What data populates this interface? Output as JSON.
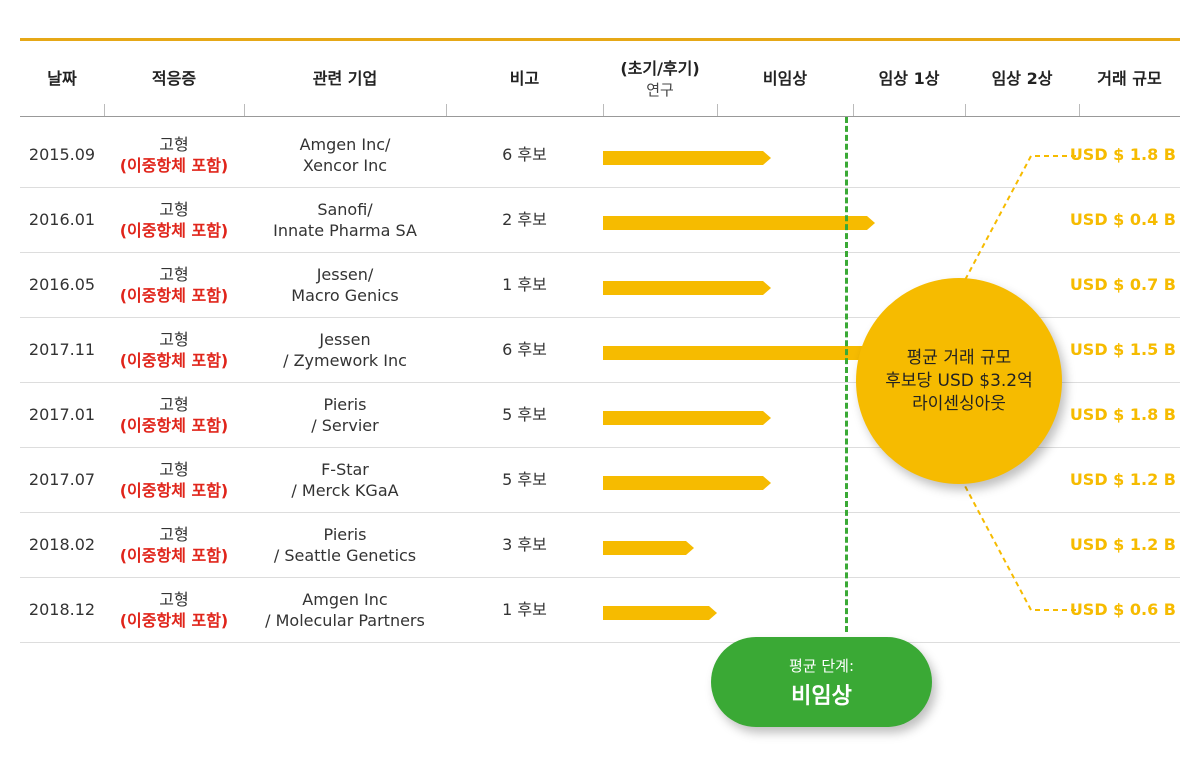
{
  "columns": {
    "date": "날짜",
    "indication": "적응증",
    "company": "관련 기업",
    "note": "비고",
    "research_line1": "(초기/후기)",
    "research_line2": "연구",
    "preclinical": "비임상",
    "phase1": "임상 1상",
    "phase2": "임상 2상",
    "deal_size": "거래 규모"
  },
  "colors": {
    "accent": "#f6bb00",
    "green": "#3aa935",
    "red": "#e0251b",
    "rule": "#e6a817"
  },
  "chart_data": {
    "type": "table",
    "stage_scale": [
      "(초기/후기) 연구",
      "비임상",
      "임상 1상",
      "임상 2상"
    ],
    "rows": [
      {
        "date": "2015.09",
        "indication": "고형",
        "indication_note": "(이중항체 포함)",
        "company_line1": "Amgen Inc/",
        "company_line2": "Xencor Inc",
        "note": "6 후보",
        "stage_progress": 1.4,
        "deal": "USD $ 1.8 B"
      },
      {
        "date": "2016.01",
        "indication": "고형",
        "indication_note": "(이중항체 포함)",
        "company_line1": "Sanofi/",
        "company_line2": "Innate Pharma SA",
        "note": "2 후보",
        "stage_progress": 2.2,
        "deal": "USD $ 0.4 B"
      },
      {
        "date": "2016.05",
        "indication": "고형",
        "indication_note": "(이중항체 포함)",
        "company_line1": "Jessen/",
        "company_line2": "Macro Genics",
        "note": "1 후보",
        "stage_progress": 1.4,
        "deal": "USD $ 0.7 B"
      },
      {
        "date": "2017.11",
        "indication": "고형",
        "indication_note": "(이중항체 포함)",
        "company_line1": "Jessen",
        "company_line2": "/ Zymework Inc",
        "note": "6 후보",
        "stage_progress": 2.2,
        "deal": "USD $ 1.5 B"
      },
      {
        "date": "2017.01",
        "indication": "고형",
        "indication_note": "(이중항체 포함)",
        "company_line1": "Pieris",
        "company_line2": "/ Servier",
        "note": "5 후보",
        "stage_progress": 1.4,
        "deal": "USD $ 1.8 B"
      },
      {
        "date": "2017.07",
        "indication": "고형",
        "indication_note": "(이중항체 포함)",
        "company_line1": "F-Star",
        "company_line2": "/ Merck KGaA",
        "note": "5 후보",
        "stage_progress": 1.4,
        "deal": "USD $ 1.2 B"
      },
      {
        "date": "2018.02",
        "indication": "고형",
        "indication_note": "(이중항체 포함)",
        "company_line1": "Pieris",
        "company_line2": "/ Seattle Genetics",
        "note": "3 후보",
        "stage_progress": 0.8,
        "deal": "USD $ 1.2 B"
      },
      {
        "date": "2018.12",
        "indication": "고형",
        "indication_note": "(이중항체 포함)",
        "company_line1": "Amgen Inc",
        "company_line2": "/ Molecular Partners",
        "note": "1 후보",
        "stage_progress": 1.0,
        "deal": "USD $ 0.6 B"
      }
    ]
  },
  "average_stage": {
    "label": "평균 단계:",
    "value": "비임상",
    "stage_position": 1.95
  },
  "average_deal": {
    "line1": "평균 거래 규모",
    "line2": "후보당 USD $3.2억",
    "line3": "라이센싱아웃"
  }
}
